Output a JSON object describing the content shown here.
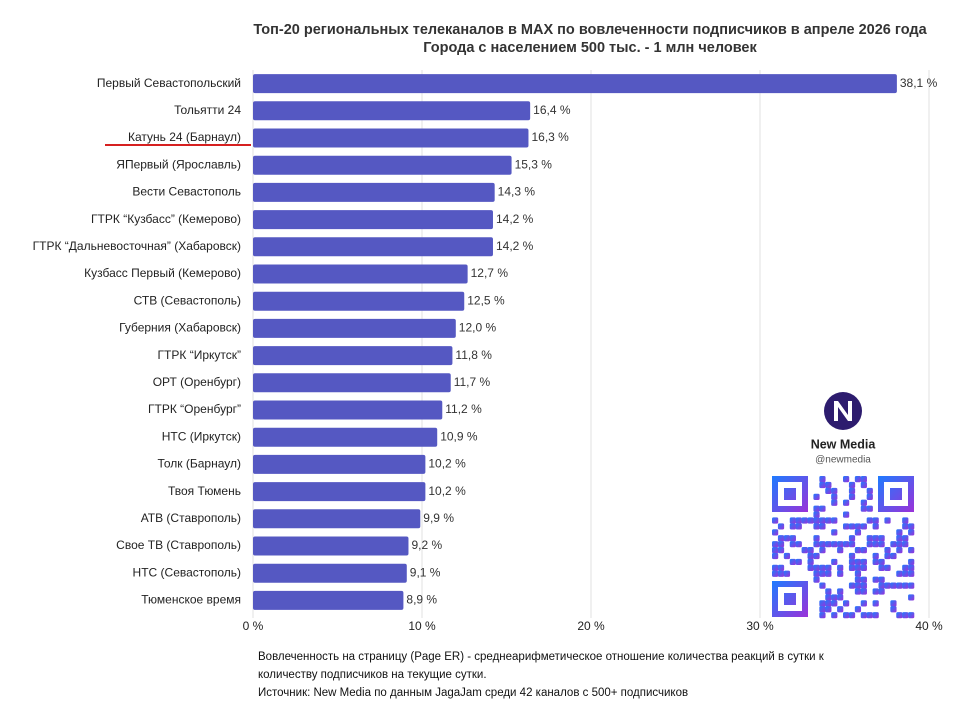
{
  "chart_data": {
    "type": "barh",
    "title": "Топ-20 региональных телеканалов в MAX по вовлеченности подписчиков в апреле 2026 года",
    "subtitle": "Города с населением 500 тыс. - 1 млн человек",
    "categories": [
      "Первый Севастопольский",
      "Тольятти 24",
      "Катунь 24 (Барнаул)",
      "ЯПервый (Ярославль)",
      "Вести Севастополь",
      "ГТРК “Кузбасс” (Кемерово)",
      "ГТРК “Дальневосточная” (Хабаровск)",
      "Кузбасс Первый (Кемерово)",
      "СТВ (Севастополь)",
      "Губерния (Хабаровск)",
      "ГТРК “Иркутск”",
      "ОРТ (Оренбург)",
      "ГТРК “Оренбург”",
      "НТС (Иркутск)",
      "Толк (Барнаул)",
      "Твоя Тюмень",
      "АТВ (Ставрополь)",
      "Свое ТВ (Ставрополь)",
      "НТС (Севастополь)",
      "Тюменское время"
    ],
    "values": [
      38.1,
      16.4,
      16.3,
      15.3,
      14.3,
      14.2,
      14.2,
      12.7,
      12.5,
      12.0,
      11.8,
      11.7,
      11.2,
      10.9,
      10.2,
      10.2,
      9.9,
      9.2,
      9.1,
      8.9
    ],
    "value_labels": [
      "38,1 %",
      "16,4 %",
      "16,3 %",
      "15,3 %",
      "14,3 %",
      "14,2 %",
      "14,2 %",
      "12,7 %",
      "12,5 %",
      "12,0 %",
      "11,8 %",
      "11,7 %",
      "11,2 %",
      "10,9 %",
      "10,2 %",
      "10,2 %",
      "9,9 %",
      "9,2 %",
      "9,1 %",
      "8,9 %"
    ],
    "color": "#5558c2",
    "xlim": [
      0,
      40
    ],
    "xticks": [
      {
        "value": 0,
        "label": "0 %"
      },
      {
        "value": 10,
        "label": "10 %"
      },
      {
        "value": 20,
        "label": "20 %"
      },
      {
        "value": 30,
        "label": "30 %"
      },
      {
        "value": 40,
        "label": "40 %"
      }
    ],
    "grid": true,
    "footnote": [
      "Вовлеченность на страницу (Page ER) - среднеарифметическое отношение количества реакций в сутки к",
      "количеству подписчиков на текущие сутки.",
      "Источник: New Media по данным JagaJam среди 42 каналов с 500+ подписчиков"
    ]
  },
  "brand": {
    "name": "New Media",
    "handle": "@newmedia"
  }
}
